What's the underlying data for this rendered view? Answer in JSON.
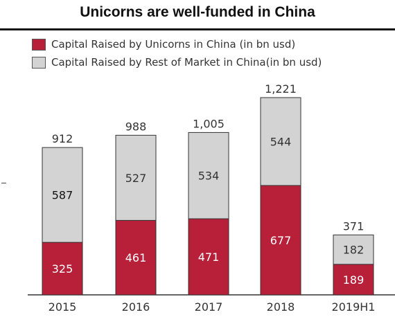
{
  "chart_data": {
    "type": "bar",
    "stacked": true,
    "title": "Unicorns are well-funded in China",
    "categories": [
      "2015",
      "2016",
      "2017",
      "2018",
      "2019H1"
    ],
    "series": [
      {
        "name": "Capital Raised by Unicorns in China (in bn usd)",
        "color": "#b8203a",
        "values": [
          325,
          461,
          471,
          677,
          189
        ],
        "labels": [
          "325",
          "461",
          "471",
          "677",
          "189"
        ]
      },
      {
        "name": "Capital Raised by Rest of Market in China(in bn usd)",
        "color": "#d3d3d3",
        "values": [
          587,
          527,
          534,
          544,
          182
        ],
        "labels": [
          "587",
          "527",
          "534",
          "544",
          "182"
        ]
      }
    ],
    "totals": [
      912,
      988,
      1005,
      1221,
      371
    ],
    "total_labels": [
      "912",
      "988",
      "1,005",
      "1,221",
      "371"
    ],
    "legend_position": "top-left",
    "grid": false,
    "ylim": [
      0,
      1250
    ]
  }
}
